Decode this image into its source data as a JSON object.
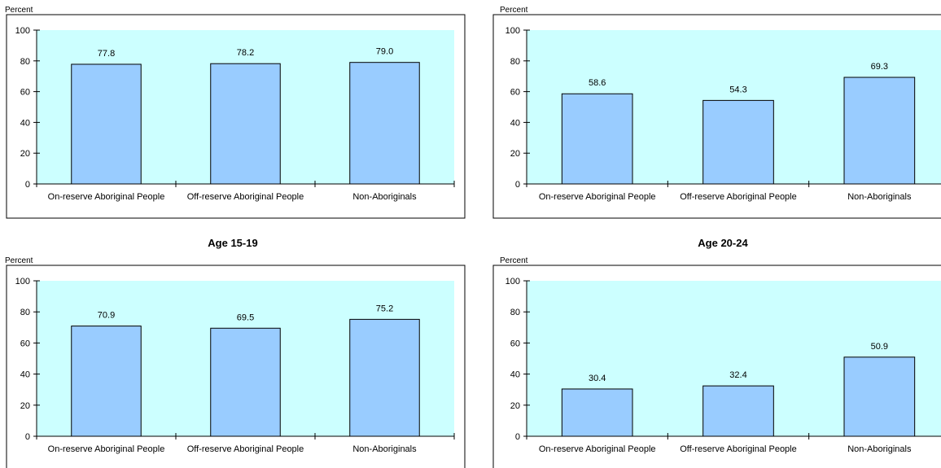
{
  "headings": [
    "Age 15-19",
    "Age 20-24"
  ],
  "chart_data": [
    {
      "type": "bar",
      "ylabel": "Percent",
      "categories": [
        "On-reserve Aboriginal People",
        "Off-reserve Aboriginal People",
        "Non-Aboriginals"
      ],
      "values": [
        77.8,
        78.2,
        79.0
      ],
      "value_labels": [
        "77.8",
        "78.2",
        "79.0"
      ],
      "ylim": [
        0,
        100
      ],
      "yticks": [
        "0",
        "20",
        "40",
        "60",
        "80",
        "100"
      ],
      "grid": false
    },
    {
      "type": "bar",
      "ylabel": "Percent",
      "categories": [
        "On-reserve Aboriginal People",
        "Off-reserve Aboriginal People",
        "Non-Aboriginals"
      ],
      "values": [
        58.6,
        54.3,
        69.3
      ],
      "value_labels": [
        "58.6",
        "54.3",
        "69.3"
      ],
      "ylim": [
        0,
        100
      ],
      "yticks": [
        "0",
        "20",
        "40",
        "60",
        "80",
        "100"
      ],
      "grid": false
    },
    {
      "type": "bar",
      "ylabel": "Percent",
      "categories": [
        "On-reserve Aboriginal People",
        "Off-reserve Aboriginal People",
        "Non-Aboriginals"
      ],
      "values": [
        70.9,
        69.5,
        75.2
      ],
      "value_labels": [
        "70.9",
        "69.5",
        "75.2"
      ],
      "ylim": [
        0,
        100
      ],
      "yticks": [
        "0",
        "20",
        "40",
        "60",
        "80",
        "100"
      ],
      "grid": false
    },
    {
      "type": "bar",
      "ylabel": "Percent",
      "categories": [
        "On-reserve Aboriginal People",
        "Off-reserve Aboriginal People",
        "Non-Aboriginals"
      ],
      "values": [
        30.4,
        32.4,
        50.9
      ],
      "value_labels": [
        "30.4",
        "32.4",
        "50.9"
      ],
      "ylim": [
        0,
        100
      ],
      "yticks": [
        "0",
        "20",
        "40",
        "60",
        "80",
        "100"
      ],
      "grid": false
    }
  ],
  "colors": {
    "plot_bg": "#ccffff",
    "bar_fill": "#99ccff",
    "bar_stroke": "#000000"
  }
}
